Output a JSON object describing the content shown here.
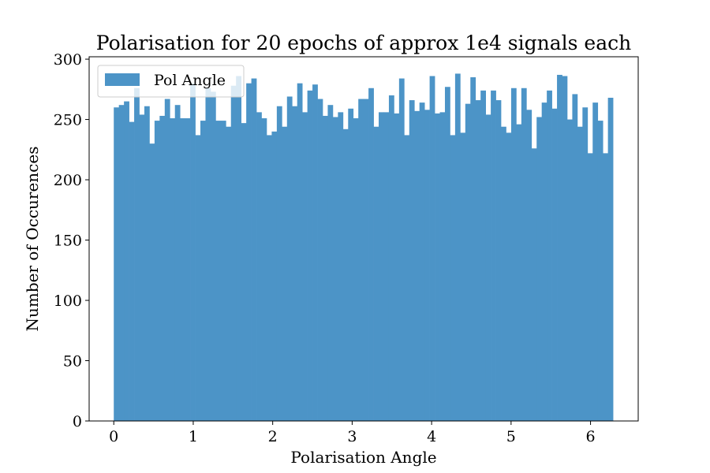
{
  "chart_data": {
    "type": "bar",
    "title": "Polarisation for 20 epochs of approx 1e4 signals each",
    "xlabel": "Polarisation Angle",
    "ylabel": "Number of Occurences",
    "xlim": [
      -0.31,
      6.6
    ],
    "ylim": [
      0,
      302
    ],
    "xticks": [
      0,
      1,
      2,
      3,
      4,
      5,
      6
    ],
    "yticks": [
      0,
      50,
      100,
      150,
      200,
      250,
      300
    ],
    "bin_range": [
      0,
      6.2832
    ],
    "color": "#4c94c7",
    "legend": {
      "position": "top-left",
      "label": "Pol Angle"
    },
    "grid": false,
    "series": [
      {
        "name": "Pol Angle",
        "values": [
          260,
          262,
          265,
          248,
          276,
          254,
          261,
          230,
          249,
          253,
          267,
          251,
          262,
          251,
          251,
          280,
          237,
          249,
          276,
          273,
          249,
          249,
          244,
          278,
          286,
          247,
          280,
          284,
          256,
          251,
          237,
          240,
          261,
          244,
          269,
          261,
          280,
          256,
          274,
          279,
          267,
          253,
          262,
          252,
          256,
          242,
          259,
          251,
          267,
          267,
          276,
          244,
          256,
          256,
          270,
          255,
          284,
          237,
          266,
          257,
          264,
          258,
          286,
          255,
          256,
          277,
          237,
          288,
          239,
          263,
          285,
          266,
          274,
          254,
          274,
          266,
          244,
          239,
          276,
          246,
          276,
          258,
          226,
          252,
          264,
          274,
          259,
          287,
          286,
          250,
          271,
          244,
          260,
          222,
          264,
          249,
          222,
          268
        ]
      }
    ]
  }
}
